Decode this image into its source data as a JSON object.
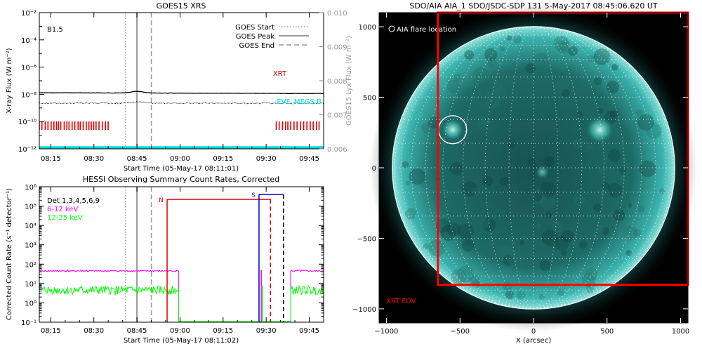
{
  "chart_data": [
    {
      "type": "line",
      "title": "GOES15 XRS",
      "xlabel": "Start Time (05-May-17 08:11:01)",
      "ylabel": "X-ray Flux (W m⁻²)",
      "y2label": "GOES15 Lyx Flux (W m⁻²)",
      "x_ticks": [
        "08:15",
        "08:30",
        "08:45",
        "09:00",
        "09:15",
        "09:30",
        "09:45"
      ],
      "y_ticks": [
        "10⁻¹²",
        "10⁻¹⁰",
        "10⁻⁸",
        "10⁻⁶",
        "10⁻⁴",
        "10⁻²"
      ],
      "y2_ticks": [
        "0.006",
        "0.007",
        "0.008",
        "0.009",
        "0.010"
      ],
      "ylim": [
        "1e-12",
        "1e-2"
      ],
      "y2lim": [
        0.006,
        0.01
      ],
      "annotation": "B1.5",
      "legend": [
        "GOES Start",
        "GOES Peak",
        "GOES End"
      ],
      "series": [
        {
          "name": "XRT",
          "color": "#cc0000"
        },
        {
          "name": "EVE_MEGS-B",
          "color": "#00dcdc"
        }
      ],
      "goes_times": {
        "start": "08:41",
        "peak": "08:45",
        "end": "08:50"
      }
    },
    {
      "type": "line",
      "title": "HESSI Observing Summary Count Rates, Corrected",
      "xlabel": "Start Time (05-May-17 08:11:02)",
      "ylabel": "Corrected Count Rate (s⁻¹ detector⁻¹)",
      "x_ticks": [
        "08:15",
        "08:30",
        "08:45",
        "09:00",
        "09:15",
        "09:30",
        "09:45"
      ],
      "y_ticks": [
        "10⁻¹",
        "10⁰",
        "10¹",
        "10²",
        "10³",
        "10⁴",
        "10⁵",
        "10⁶"
      ],
      "ylim": [
        "1e-1",
        "1e6"
      ],
      "legend_header": "Det 1,3,4,5,6,9",
      "series": [
        {
          "name": "6-12 keV",
          "color": "#ff00ff"
        },
        {
          "name": "12-25 keV",
          "color": "#00ff00"
        }
      ],
      "markers": {
        "night": "N",
        "saa": "S"
      }
    },
    {
      "type": "heatmap",
      "title": "SDO/AIA AIA_1 SDO/JSDC-SDP 131  5-May-2017 08:45:06.620 UT",
      "xlabel": "X (arcsec)",
      "x_ticks": [
        "−1000",
        "−500",
        "0",
        "500",
        "1000"
      ],
      "y_ticks": [
        "1000",
        "500",
        "0",
        "−500",
        "−1000"
      ],
      "xlim": [
        -1050,
        1050
      ],
      "ylim": [
        -1100,
        1100
      ],
      "annotations": {
        "flare": "AIA flare location",
        "fov": "XRT FOV"
      },
      "flare_location": [
        -550,
        270
      ],
      "xrt_fov_left_edge": -650,
      "colors": {
        "background": "#000000",
        "fov": "#ff0000",
        "disk": "#2fa6a0"
      }
    }
  ]
}
